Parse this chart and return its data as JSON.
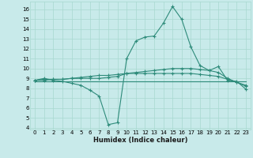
{
  "xlabel": "Humidex (Indice chaleur)",
  "bg_color": "#c8eaea",
  "line_color": "#2e8b7a",
  "grid_color": "#a8d8d0",
  "xlim": [
    -0.5,
    23.5
  ],
  "ylim": [
    3.8,
    16.8
  ],
  "yticks": [
    4,
    5,
    6,
    7,
    8,
    9,
    10,
    11,
    12,
    13,
    14,
    15,
    16
  ],
  "xticks": [
    0,
    1,
    2,
    3,
    4,
    5,
    6,
    7,
    8,
    9,
    10,
    11,
    12,
    13,
    14,
    15,
    16,
    17,
    18,
    19,
    20,
    21,
    22,
    23
  ],
  "line1_x": [
    0,
    1,
    2,
    3,
    4,
    5,
    6,
    7,
    8,
    9,
    10,
    11,
    12,
    13,
    14,
    15,
    16,
    17,
    18,
    19,
    20,
    21,
    22,
    23
  ],
  "line1_y": [
    8.8,
    9.0,
    8.8,
    8.7,
    8.5,
    8.3,
    7.8,
    7.2,
    4.3,
    4.5,
    11.0,
    12.8,
    13.2,
    13.3,
    14.6,
    16.3,
    15.0,
    12.2,
    10.3,
    9.8,
    10.2,
    8.8,
    8.7,
    7.9
  ],
  "line2_x": [
    0,
    1,
    2,
    3,
    4,
    5,
    6,
    7,
    8,
    9,
    10,
    11,
    12,
    13,
    14,
    15,
    16,
    17,
    18,
    19,
    20,
    21,
    22,
    23
  ],
  "line2_y": [
    8.8,
    8.9,
    8.9,
    8.9,
    9.0,
    9.0,
    9.0,
    9.0,
    9.1,
    9.2,
    9.5,
    9.6,
    9.7,
    9.8,
    9.9,
    10.0,
    10.0,
    10.0,
    9.9,
    9.8,
    9.6,
    9.0,
    8.6,
    8.3
  ],
  "line3_x": [
    0,
    1,
    2,
    3,
    4,
    5,
    6,
    7,
    8,
    9,
    10,
    11,
    12,
    13,
    14,
    15,
    16,
    17,
    18,
    19,
    20,
    21,
    22,
    23
  ],
  "line3_y": [
    8.7,
    8.7,
    8.7,
    8.7,
    8.7,
    8.7,
    8.7,
    8.7,
    8.7,
    8.7,
    8.7,
    8.7,
    8.7,
    8.7,
    8.7,
    8.7,
    8.7,
    8.7,
    8.7,
    8.7,
    8.7,
    8.7,
    8.7,
    8.7
  ],
  "line4_x": [
    0,
    1,
    2,
    3,
    4,
    5,
    6,
    7,
    8,
    9,
    10,
    11,
    12,
    13,
    14,
    15,
    16,
    17,
    18,
    19,
    20,
    21,
    22,
    23
  ],
  "line4_y": [
    8.8,
    8.8,
    8.9,
    8.9,
    9.0,
    9.1,
    9.2,
    9.3,
    9.3,
    9.4,
    9.5,
    9.5,
    9.5,
    9.5,
    9.5,
    9.5,
    9.5,
    9.5,
    9.4,
    9.3,
    9.2,
    8.9,
    8.6,
    8.2
  ],
  "tick_fontsize": 5.0,
  "xlabel_fontsize": 6.0
}
